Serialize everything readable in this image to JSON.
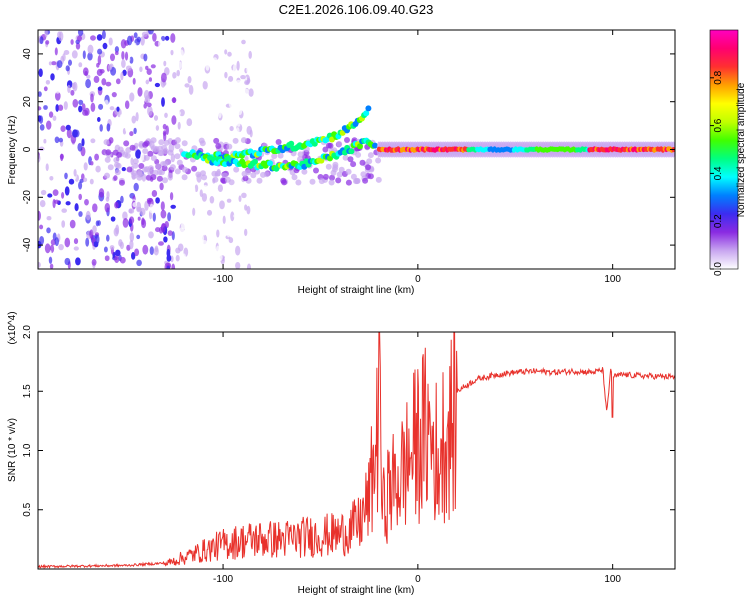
{
  "title": "C2E1.2026.106.09.40.G23",
  "chart_data": [
    {
      "type": "heatmap",
      "name": "spectrogram",
      "xlabel": "Height of straight line (km)",
      "ylabel": "Frequency (Hz)",
      "xlim": [
        -195,
        132
      ],
      "ylim": [
        -50,
        50
      ],
      "xticks": [
        -100,
        0,
        100
      ],
      "yticks": [
        -40,
        -20,
        0,
        20,
        40
      ],
      "colorbar": {
        "label": "Normalized spectral amplitude",
        "range": [
          0,
          1
        ],
        "ticks": [
          0.0,
          0.2,
          0.4,
          0.6,
          0.8
        ],
        "colors": [
          "#ffffff",
          "#c8a6f0",
          "#8a2be2",
          "#3c2cf0",
          "#0080ff",
          "#00ffff",
          "#00ff80",
          "#40ff00",
          "#c0ff00",
          "#ffff00",
          "#ffa000",
          "#ff3030",
          "#ff0070",
          "#ff00c0"
        ]
      },
      "features": {
        "noise_region_x": [
          -195,
          -125
        ],
        "upper_branch": {
          "x": [
            -120,
            -100,
            -80,
            -60,
            -45,
            -35,
            -28,
            -25
          ],
          "f": [
            -2,
            -3,
            -1,
            2,
            5,
            9,
            14,
            18
          ]
        },
        "lower_branch": {
          "x": [
            -110,
            -90,
            -70,
            -55,
            -45,
            -35,
            -28,
            -22
          ],
          "f": [
            -4,
            -6,
            -7,
            -6,
            -3,
            0,
            3,
            2
          ]
        },
        "main_band": {
          "x_start": -20,
          "x_end": 132,
          "f": 0,
          "peak_amplitude": 0.9
        }
      }
    },
    {
      "type": "line",
      "name": "snr",
      "xlabel": "Height of straight line (km)",
      "ylabel": "SNR (10 * v/v)",
      "y_multiplier": "(x10^4)",
      "xlim": [
        -195,
        132
      ],
      "ylim": [
        0,
        2.0
      ],
      "xticks": [
        -100,
        0,
        100
      ],
      "yticks": [
        0.5,
        1.0,
        1.5,
        2.0
      ],
      "series_color": "#e8322c",
      "envelope": {
        "x": [
          -195,
          -150,
          -130,
          -115,
          -100,
          -85,
          -70,
          -55,
          -40,
          -30,
          -25,
          -21,
          -20,
          -18,
          -15,
          -10,
          -5,
          0,
          5,
          10,
          15,
          20,
          30,
          40,
          50,
          60,
          70,
          80,
          90,
          95,
          97,
          99,
          100,
          105,
          115,
          132
        ],
        "y": [
          0.02,
          0.03,
          0.05,
          0.15,
          0.25,
          0.3,
          0.3,
          0.33,
          0.35,
          0.45,
          0.7,
          1.3,
          1.6,
          0.6,
          0.8,
          0.9,
          1.1,
          1.3,
          1.4,
          1.15,
          1.4,
          1.5,
          1.6,
          1.64,
          1.66,
          1.67,
          1.66,
          1.67,
          1.66,
          1.68,
          1.3,
          1.7,
          1.62,
          1.64,
          1.63,
          1.62
        ]
      },
      "spikes": [
        {
          "x": -20,
          "y": 2.0
        },
        {
          "x": 10,
          "y": 0.55
        },
        {
          "x": 100,
          "y": 1.28
        }
      ]
    }
  ]
}
